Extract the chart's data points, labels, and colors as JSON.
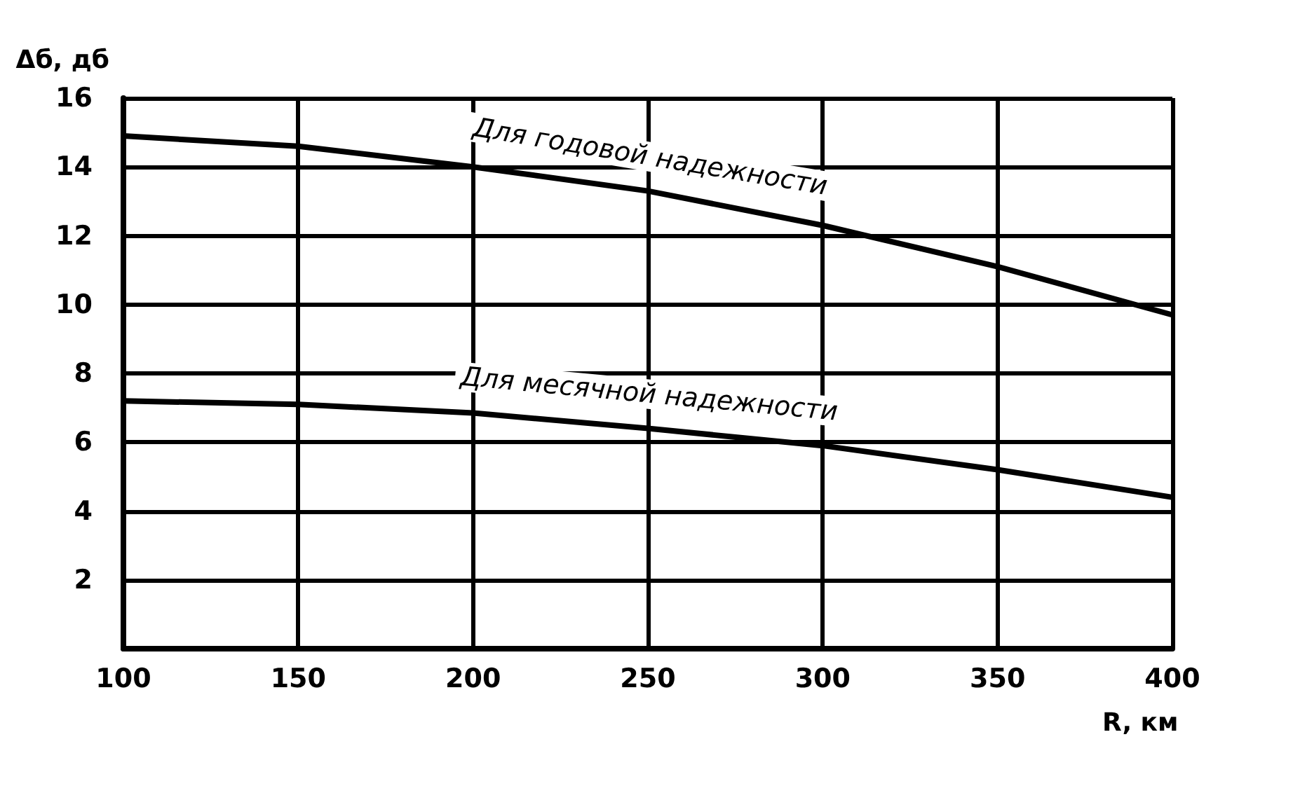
{
  "chart_data": {
    "type": "line",
    "xlabel": "R, км",
    "ylabel": "Δб, дб",
    "x": [
      100,
      150,
      200,
      250,
      300,
      350,
      400
    ],
    "series": [
      {
        "name": "Для годовой надежности",
        "color": "#000000",
        "values": [
          14.9,
          14.6,
          14.0,
          13.3,
          12.3,
          11.1,
          9.7
        ]
      },
      {
        "name": "Для месячной надежности",
        "color": "#000000",
        "values": [
          7.2,
          7.1,
          6.85,
          6.4,
          5.9,
          5.2,
          4.4
        ]
      }
    ],
    "xlim": [
      100,
      400
    ],
    "xticks": [
      100,
      150,
      200,
      250,
      300,
      350,
      400
    ],
    "ylim": [
      0,
      16
    ],
    "yticks": [
      {
        "value": 0,
        "label": null
      },
      2,
      4,
      6,
      8,
      10,
      12,
      14,
      16
    ],
    "grid": true,
    "marker": "none",
    "line_style": "solid",
    "legend": false
  }
}
